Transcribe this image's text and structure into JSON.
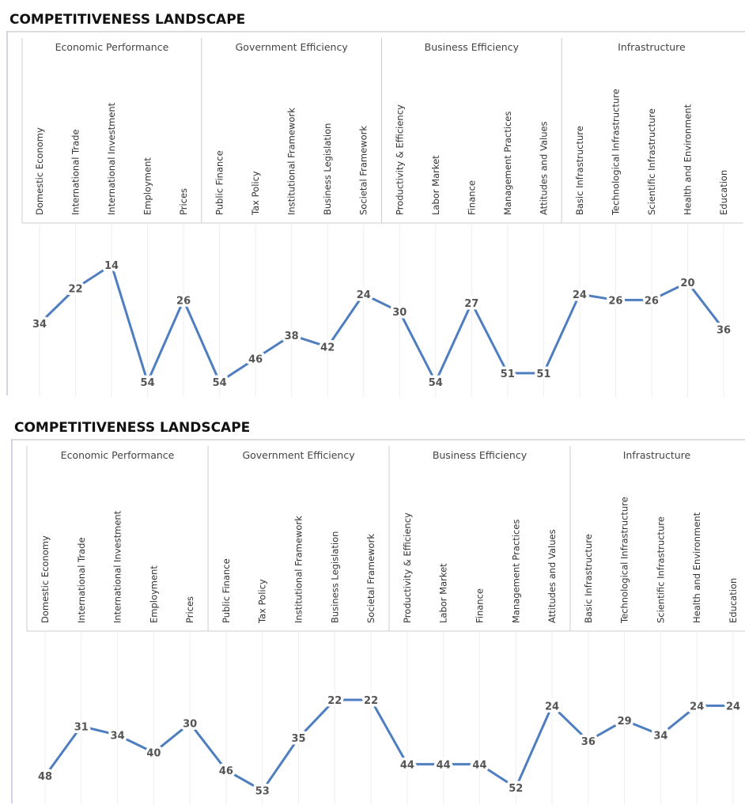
{
  "chart_data": [
    {
      "type": "line",
      "title": "COMPETITIVENESS LANDSCAPE",
      "groups": [
        "Economic Performance",
        "Government Efficiency",
        "Business Efficiency",
        "Infrastructure"
      ],
      "categories": [
        "Domestic Economy",
        "International Trade",
        "International Investment",
        "Employment",
        "Prices",
        "Public Finance",
        "Tax Policy",
        "Institutional Framework",
        "Business Legislation",
        "Societal Framework",
        "Productivity & Efficiency",
        "Labor Market",
        "Finance",
        "Management Practices",
        "Attitudes and Values",
        "Basic Infrastructure",
        "Technological Infrastructure",
        "Scientific Infrastructure",
        "Health and Environment",
        "Education"
      ],
      "color": "#4f7ec0",
      "inverted": true,
      "values": [
        34,
        22,
        14,
        54,
        26,
        54,
        46,
        38,
        42,
        24,
        30,
        54,
        27,
        51,
        51,
        24,
        26,
        26,
        20,
        36
      ]
    },
    {
      "type": "line",
      "title": "COMPETITIVENESS LANDSCAPE",
      "groups": [
        "Economic Performance",
        "Government Efficiency",
        "Business Efficiency",
        "Infrastructure"
      ],
      "categories": [
        "Domestic Economy",
        "International Trade",
        "International Investment",
        "Employment",
        "Prices",
        "Public Finance",
        "Tax Policy",
        "Institutional Framework",
        "Business Legislation",
        "Societal Framework",
        "Productivity & Efficiency",
        "Labor Market",
        "Finance",
        "Management Practices",
        "Attitudes and Values",
        "Basic Infrastructure",
        "Technological Infrastructure",
        "Scientific Infrastructure",
        "Health and Environment",
        "Education"
      ],
      "color": "#4f7ec0",
      "inverted": true,
      "values": [
        48,
        31,
        34,
        40,
        30,
        46,
        53,
        35,
        22,
        22,
        44,
        44,
        44,
        52,
        24,
        36,
        29,
        34,
        24,
        24
      ]
    }
  ]
}
